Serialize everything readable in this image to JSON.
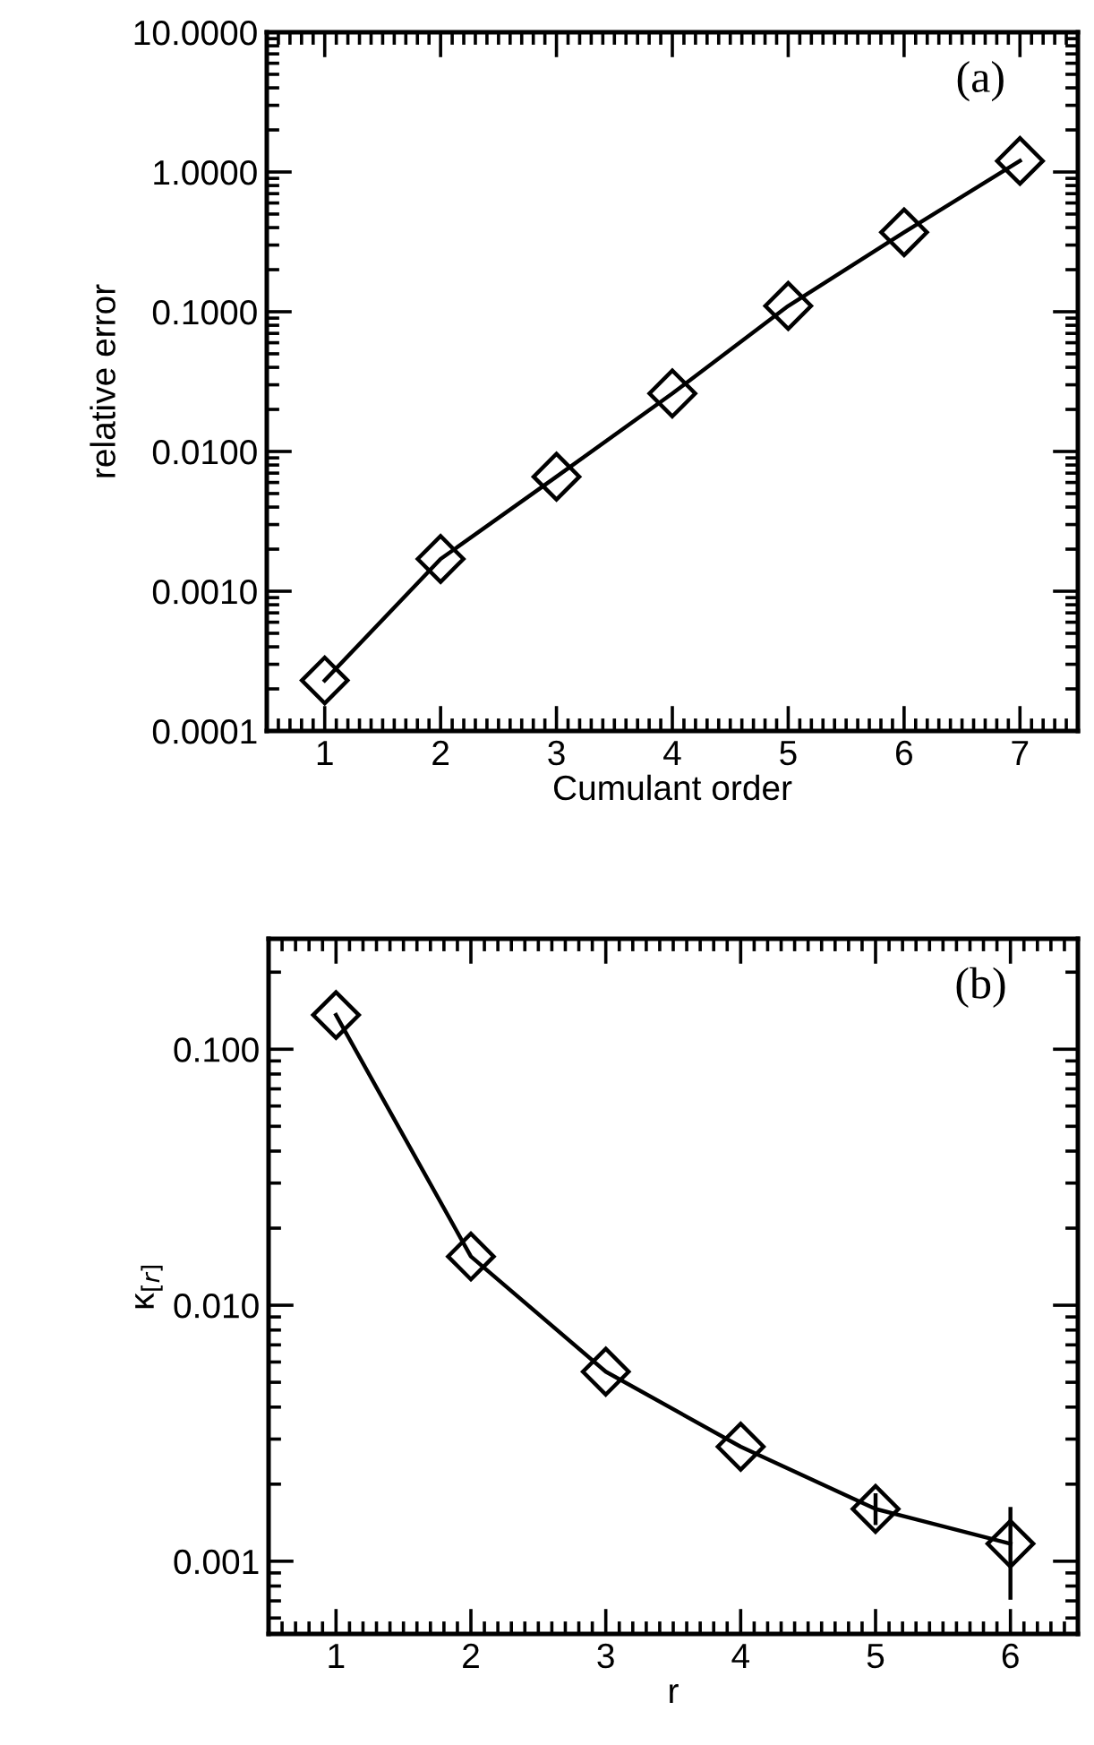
{
  "chart_data": [
    {
      "type": "line",
      "xlabel": "Cumulant order",
      "ylabel": "relative error",
      "annotations": [
        "(a)"
      ],
      "log": "y",
      "marker": "diamond",
      "line_style": "solid",
      "grid": false,
      "legend": false,
      "x": [
        1,
        2,
        3,
        4,
        5,
        6,
        7
      ],
      "series": [
        {
          "color": "#000000",
          "values": [
            0.00023,
            0.0017,
            0.0066,
            0.026,
            0.11,
            0.37,
            1.2
          ]
        }
      ],
      "xlim": [
        0.5,
        7.5
      ],
      "xticks": [
        1,
        2,
        3,
        4,
        5,
        6,
        7
      ],
      "ylim": [
        0.0001,
        10
      ],
      "yticks": [
        {
          "value": 10,
          "label": "10.0000"
        },
        {
          "value": 1,
          "label": "1.0000"
        },
        {
          "value": 0.1,
          "label": "0.1000"
        },
        {
          "value": 0.01,
          "label": "0.0100"
        },
        {
          "value": 0.001,
          "label": "0.0010"
        },
        {
          "value": 0.0001,
          "label": "0.0001"
        }
      ]
    },
    {
      "type": "line",
      "xlabel": "r",
      "ylabel": "κ$_{[r]}$",
      "annotations": [
        "(b)"
      ],
      "log": "y",
      "marker": "diamond",
      "line_style": "solid",
      "grid": false,
      "legend": false,
      "x": [
        1,
        2,
        3,
        4,
        5,
        6
      ],
      "series": [
        {
          "color": "#000000",
          "values": [
            0.136,
            0.0155,
            0.0055,
            0.0028,
            0.0016,
            0.00117
          ],
          "errors": [
            null,
            null,
            null,
            null,
            [
              0.00141,
              0.00181
            ],
            [
              0.00072,
              0.0016
            ]
          ]
        }
      ],
      "xlim": [
        0.5,
        6.5
      ],
      "xticks": [
        1,
        2,
        3,
        4,
        5,
        6
      ],
      "ylim": [
        0.00052,
        0.27
      ],
      "yticks": [
        {
          "value": 0.1,
          "label": "0.100"
        },
        {
          "value": 0.01,
          "label": "0.010"
        },
        {
          "value": 0.001,
          "label": "0.001"
        }
      ]
    }
  ]
}
